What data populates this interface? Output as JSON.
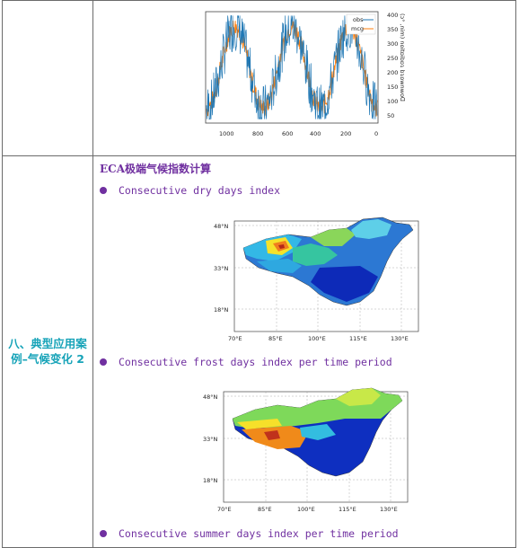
{
  "section": {
    "label_line1": "八、典型应用案",
    "label_line2": "例–气候变化 2"
  },
  "top_chart": {
    "legend": [
      "obs",
      "mcg"
    ],
    "ylabel": "(ɔ° ,nim) noitɒibɒɿ bɿɒwnwoᗡ",
    "xticks": [
      "1000",
      "800",
      "600",
      "400",
      "200",
      "0"
    ],
    "yticks": [
      "400",
      "350",
      "300",
      "250",
      "200",
      "150",
      "100",
      "50"
    ],
    "colors": {
      "obs": "#1f77b4",
      "mcg": "#ff7f0e"
    }
  },
  "eca": {
    "heading": "ECA极端气候指数计算",
    "items": [
      "Consecutive dry days index",
      "Consecutive frost days index per time period",
      "Consecutive summer days index per time period"
    ]
  },
  "map_axes": {
    "lat": [
      "48°N",
      "33°N",
      "18°N"
    ],
    "lon": [
      "70°E",
      "85°E",
      "100°E",
      "115°E",
      "130°E"
    ]
  }
}
